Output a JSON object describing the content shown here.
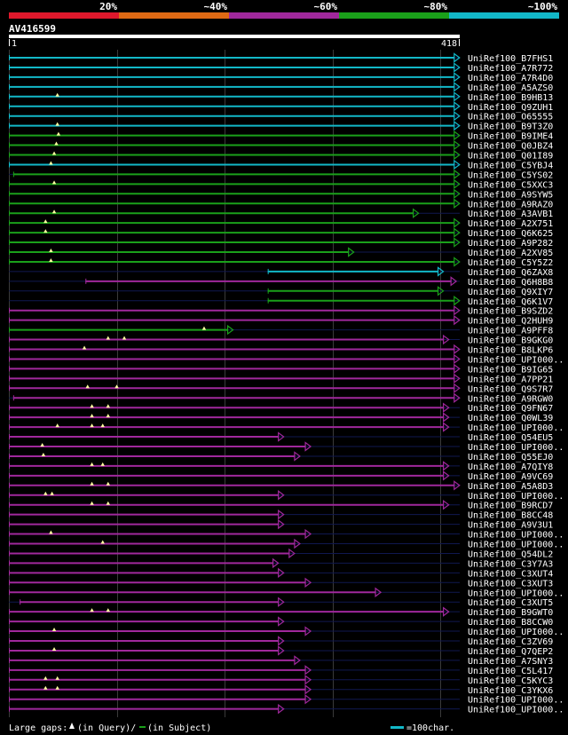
{
  "chart_data": {
    "type": "alignment-overview",
    "query_id": "AV416599",
    "query_length": 418,
    "range_start_label": "1",
    "range_end_label": "418",
    "identity_legend": [
      {
        "label": "20%",
        "color": "#e0182c"
      },
      {
        "label": "~40%",
        "color": "#e06a14"
      },
      {
        "label": "~60%",
        "color": "#a0289c"
      },
      {
        "label": "~80%",
        "color": "#1aa01a"
      },
      {
        "label": "~100%",
        "color": "#12b8c8"
      }
    ],
    "grid_every": 100,
    "hits": [
      {
        "name": "UniRef100_B7FHS1",
        "start": 1,
        "end": 418,
        "color": "#12b8c8",
        "gaps": []
      },
      {
        "name": "UniRef100_A7R772",
        "start": 1,
        "end": 418,
        "color": "#12b8c8",
        "gaps": []
      },
      {
        "name": "UniRef100_A7R4D0",
        "start": 1,
        "end": 418,
        "color": "#12b8c8",
        "gaps": []
      },
      {
        "name": "UniRef100_A5AZS0",
        "start": 1,
        "end": 418,
        "color": "#12b8c8",
        "gaps": []
      },
      {
        "name": "UniRef100_B9HB13",
        "start": 1,
        "end": 418,
        "color": "#12b8c8",
        "gaps": [
          46
        ]
      },
      {
        "name": "UniRef100_Q9ZUH1",
        "start": 1,
        "end": 418,
        "color": "#12b8c8",
        "gaps": []
      },
      {
        "name": "UniRef100_O65555",
        "start": 1,
        "end": 418,
        "color": "#12b8c8",
        "gaps": []
      },
      {
        "name": "UniRef100_B9T3Z0",
        "start": 1,
        "end": 418,
        "color": "#12b8c8",
        "gaps": [
          46
        ]
      },
      {
        "name": "UniRef100_B9IME4",
        "start": 1,
        "end": 418,
        "color": "#1aa01a",
        "gaps": [
          47
        ]
      },
      {
        "name": "UniRef100_Q0JBZ4",
        "start": 1,
        "end": 418,
        "color": "#1aa01a",
        "gaps": [
          45
        ]
      },
      {
        "name": "UniRef100_Q01I89",
        "start": 1,
        "end": 418,
        "color": "#1aa01a",
        "gaps": [
          43
        ]
      },
      {
        "name": "UniRef100_C5YBJ4",
        "start": 1,
        "end": 418,
        "color": "#12b8c8",
        "gaps": [
          40
        ]
      },
      {
        "name": "UniRef100_C5YS02",
        "start": 5,
        "end": 418,
        "color": "#1aa01a",
        "gaps": []
      },
      {
        "name": "UniRef100_C5XXC3",
        "start": 1,
        "end": 418,
        "color": "#1aa01a",
        "gaps": [
          43
        ]
      },
      {
        "name": "UniRef100_A9SYW5",
        "start": 1,
        "end": 418,
        "color": "#1aa01a",
        "gaps": []
      },
      {
        "name": "UniRef100_A9RAZ0",
        "start": 1,
        "end": 418,
        "color": "#1aa01a",
        "gaps": []
      },
      {
        "name": "UniRef100_A3AVB1",
        "start": 1,
        "end": 380,
        "color": "#1aa01a",
        "gaps": [
          43
        ]
      },
      {
        "name": "UniRef100_A2X751",
        "start": 1,
        "end": 418,
        "color": "#1aa01a",
        "gaps": [
          35
        ]
      },
      {
        "name": "UniRef100_Q6K625",
        "start": 1,
        "end": 418,
        "color": "#1aa01a",
        "gaps": [
          35
        ]
      },
      {
        "name": "UniRef100_A9P282",
        "start": 1,
        "end": 418,
        "color": "#1aa01a",
        "gaps": []
      },
      {
        "name": "UniRef100_A2XV85",
        "start": 1,
        "end": 320,
        "color": "#1aa01a",
        "gaps": [
          40
        ]
      },
      {
        "name": "UniRef100_C5Y5Z2",
        "start": 1,
        "end": 418,
        "color": "#1aa01a",
        "gaps": [
          40
        ]
      },
      {
        "name": "UniRef100_Q6ZAX8",
        "start": 241,
        "end": 403,
        "color": "#12b8c8",
        "gaps": []
      },
      {
        "name": "UniRef100_Q6H8B8",
        "start": 72,
        "end": 415,
        "color": "#a0289c",
        "gaps": []
      },
      {
        "name": "UniRef100_Q9XIY7",
        "start": 241,
        "end": 403,
        "color": "#1aa01a",
        "gaps": []
      },
      {
        "name": "UniRef100_Q6K1V7",
        "start": 241,
        "end": 418,
        "color": "#1aa01a",
        "gaps": []
      },
      {
        "name": "UniRef100_B9SZD2",
        "start": 1,
        "end": 418,
        "color": "#a0289c",
        "gaps": []
      },
      {
        "name": "UniRef100_Q2HUH9",
        "start": 1,
        "end": 418,
        "color": "#a0289c",
        "gaps": []
      },
      {
        "name": "UniRef100_A9PFF8",
        "start": 1,
        "end": 208,
        "color": "#1aa01a",
        "gaps": [
          182
        ]
      },
      {
        "name": "UniRef100_B9GKG0",
        "start": 1,
        "end": 408,
        "color": "#a0289c",
        "gaps": [
          93,
          108
        ]
      },
      {
        "name": "UniRef100_B8LKP6",
        "start": 1,
        "end": 418,
        "color": "#a0289c",
        "gaps": [
          71
        ]
      },
      {
        "name": "UniRef100_UPI000..",
        "start": 1,
        "end": 418,
        "color": "#a0289c",
        "gaps": []
      },
      {
        "name": "UniRef100_B9IG65",
        "start": 1,
        "end": 418,
        "color": "#a0289c",
        "gaps": []
      },
      {
        "name": "UniRef100_A7PP21",
        "start": 1,
        "end": 418,
        "color": "#a0289c",
        "gaps": []
      },
      {
        "name": "UniRef100_Q9S7R7",
        "start": 1,
        "end": 418,
        "color": "#a0289c",
        "gaps": [
          74,
          101
        ]
      },
      {
        "name": "UniRef100_A9RGW0",
        "start": 5,
        "end": 418,
        "color": "#a0289c",
        "gaps": []
      },
      {
        "name": "UniRef100_Q9FN67",
        "start": 1,
        "end": 408,
        "color": "#a0289c",
        "gaps": [
          78,
          93
        ]
      },
      {
        "name": "UniRef100_Q0WL39",
        "start": 1,
        "end": 408,
        "color": "#a0289c",
        "gaps": [
          78,
          93
        ]
      },
      {
        "name": "UniRef100_UPI000..",
        "start": 1,
        "end": 408,
        "color": "#a0289c",
        "gaps": [
          46,
          78,
          88
        ]
      },
      {
        "name": "UniRef100_Q54EU5",
        "start": 1,
        "end": 255,
        "color": "#a0289c",
        "gaps": []
      },
      {
        "name": "UniRef100_UPI000..",
        "start": 1,
        "end": 280,
        "color": "#a0289c",
        "gaps": [
          32
        ]
      },
      {
        "name": "UniRef100_Q55EJ0",
        "start": 1,
        "end": 270,
        "color": "#a0289c",
        "gaps": [
          33
        ]
      },
      {
        "name": "UniRef100_A7QIY8",
        "start": 1,
        "end": 408,
        "color": "#a0289c",
        "gaps": [
          78,
          88
        ]
      },
      {
        "name": "UniRef100_A9VC69",
        "start": 1,
        "end": 408,
        "color": "#a0289c",
        "gaps": []
      },
      {
        "name": "UniRef100_A5A8D3",
        "start": 1,
        "end": 418,
        "color": "#a0289c",
        "gaps": [
          78,
          93
        ]
      },
      {
        "name": "UniRef100_UPI000..",
        "start": 1,
        "end": 255,
        "color": "#a0289c",
        "gaps": [
          35,
          41
        ]
      },
      {
        "name": "UniRef100_B9RCD7",
        "start": 1,
        "end": 408,
        "color": "#a0289c",
        "gaps": [
          78,
          93
        ]
      },
      {
        "name": "UniRef100_B8CC48",
        "start": 1,
        "end": 255,
        "color": "#a0289c",
        "gaps": []
      },
      {
        "name": "UniRef100_A9V3U1",
        "start": 1,
        "end": 255,
        "color": "#a0289c",
        "gaps": []
      },
      {
        "name": "UniRef100_UPI000..",
        "start": 1,
        "end": 280,
        "color": "#a0289c",
        "gaps": [
          40
        ]
      },
      {
        "name": "UniRef100_UPI000..",
        "start": 1,
        "end": 270,
        "color": "#a0289c",
        "gaps": [
          88
        ]
      },
      {
        "name": "UniRef100_Q54DL2",
        "start": 1,
        "end": 265,
        "color": "#a0289c",
        "gaps": []
      },
      {
        "name": "UniRef100_C3Y7A3",
        "start": 1,
        "end": 250,
        "color": "#a0289c",
        "gaps": []
      },
      {
        "name": "UniRef100_C3XUT4",
        "start": 1,
        "end": 255,
        "color": "#a0289c",
        "gaps": []
      },
      {
        "name": "UniRef100_C3XUT3",
        "start": 1,
        "end": 280,
        "color": "#a0289c",
        "gaps": []
      },
      {
        "name": "UniRef100_UPI000..",
        "start": 1,
        "end": 345,
        "color": "#a0289c",
        "gaps": []
      },
      {
        "name": "UniRef100_C3XUT5",
        "start": 11,
        "end": 255,
        "color": "#a0289c",
        "gaps": []
      },
      {
        "name": "UniRef100_B9GWT0",
        "start": 1,
        "end": 408,
        "color": "#a0289c",
        "gaps": [
          78,
          93
        ]
      },
      {
        "name": "UniRef100_B8CCW0",
        "start": 1,
        "end": 255,
        "color": "#a0289c",
        "gaps": []
      },
      {
        "name": "UniRef100_UPI000..",
        "start": 1,
        "end": 280,
        "color": "#a0289c",
        "gaps": [
          43
        ]
      },
      {
        "name": "UniRef100_C3ZV69",
        "start": 1,
        "end": 255,
        "color": "#a0289c",
        "gaps": []
      },
      {
        "name": "UniRef100_Q7QEP2",
        "start": 1,
        "end": 255,
        "color": "#a0289c",
        "gaps": [
          43
        ]
      },
      {
        "name": "UniRef100_A7SNY3",
        "start": 1,
        "end": 270,
        "color": "#a0289c",
        "gaps": []
      },
      {
        "name": "UniRef100_C5L417",
        "start": 1,
        "end": 280,
        "color": "#a0289c",
        "gaps": []
      },
      {
        "name": "UniRef100_C5KYC3",
        "start": 1,
        "end": 280,
        "color": "#a0289c",
        "gaps": [
          35,
          46
        ]
      },
      {
        "name": "UniRef100_C3YKX6",
        "start": 1,
        "end": 280,
        "color": "#a0289c",
        "gaps": [
          35,
          46
        ]
      },
      {
        "name": "UniRef100_UPI000..",
        "start": 1,
        "end": 280,
        "color": "#a0289c",
        "gaps": []
      },
      {
        "name": "UniRef100_UPI000..",
        "start": 1,
        "end": 255,
        "color": "#a0289c",
        "gaps": []
      }
    ]
  },
  "footer": {
    "gaps_prefix": "Large gaps:",
    "gaps_query": "(in Query)/",
    "gaps_subject": "(in Subject)",
    "scale_label": "=100char."
  }
}
